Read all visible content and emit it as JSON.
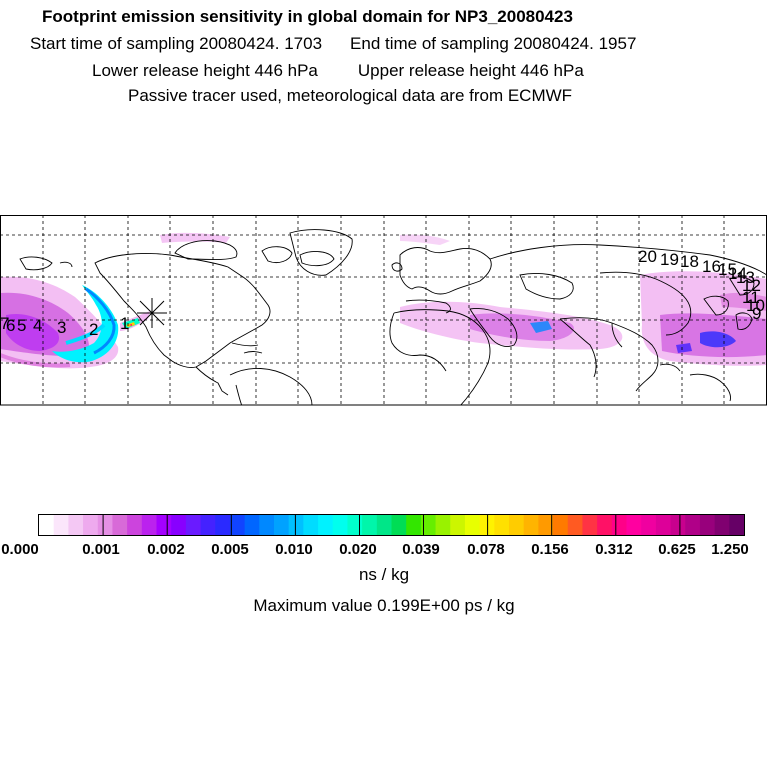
{
  "header": {
    "title": "Footprint emission sensitivity in global domain for NP3_20080423",
    "start_label": "Start time of sampling 20080424.  1703",
    "end_label": "End time of sampling 20080424.  1957",
    "lower_label": "Lower release height  446 hPa",
    "upper_label": "Upper release height  446 hPa",
    "tracer_note": "Passive tracer used, meteorological data are from ECMWF"
  },
  "map": {
    "trajectory_labels_west": [
      "7",
      "6",
      "5",
      "4",
      "3",
      "2",
      "1"
    ],
    "trajectory_labels_east": [
      "20",
      "19",
      "18",
      "16",
      "15",
      "14",
      "13",
      "12",
      "11",
      "10",
      "9"
    ],
    "release_marker": "release-star"
  },
  "colorbar": {
    "tick_labels": [
      "0.000",
      "0.001",
      "0.002",
      "0.005",
      "0.010",
      "0.020",
      "0.039",
      "0.078",
      "0.156",
      "0.312",
      "0.625",
      "1.250"
    ],
    "colors": [
      "#ffffff",
      "#fbe6fb",
      "#f4c8f4",
      "#eeaaee",
      "#e590e5",
      "#d86ad8",
      "#cc44dd",
      "#bb22ee",
      "#a400ff",
      "#8800ff",
      "#6a1bff",
      "#4422ff",
      "#2a2aff",
      "#1144ff",
      "#0066ff",
      "#0088ff",
      "#00a2ff",
      "#00c0ff",
      "#00dcff",
      "#00f2ff",
      "#00ffee",
      "#00ffcc",
      "#00f6aa",
      "#00e688",
      "#00dd55",
      "#33e600",
      "#66ee00",
      "#99f200",
      "#ccf600",
      "#e8ff00",
      "#fff200",
      "#ffe000",
      "#ffcc00",
      "#ffb400",
      "#ff9a00",
      "#ff7a00",
      "#ff5a22",
      "#ff3344",
      "#ff1166",
      "#ff0088",
      "#ff00a0",
      "#f000a0",
      "#dd0099",
      "#c8008e",
      "#b00088",
      "#98007c",
      "#800070",
      "#660066"
    ],
    "units": "ns / kg"
  },
  "footer": {
    "max_value": "Maximum value  0.199E+00 ps / kg"
  }
}
